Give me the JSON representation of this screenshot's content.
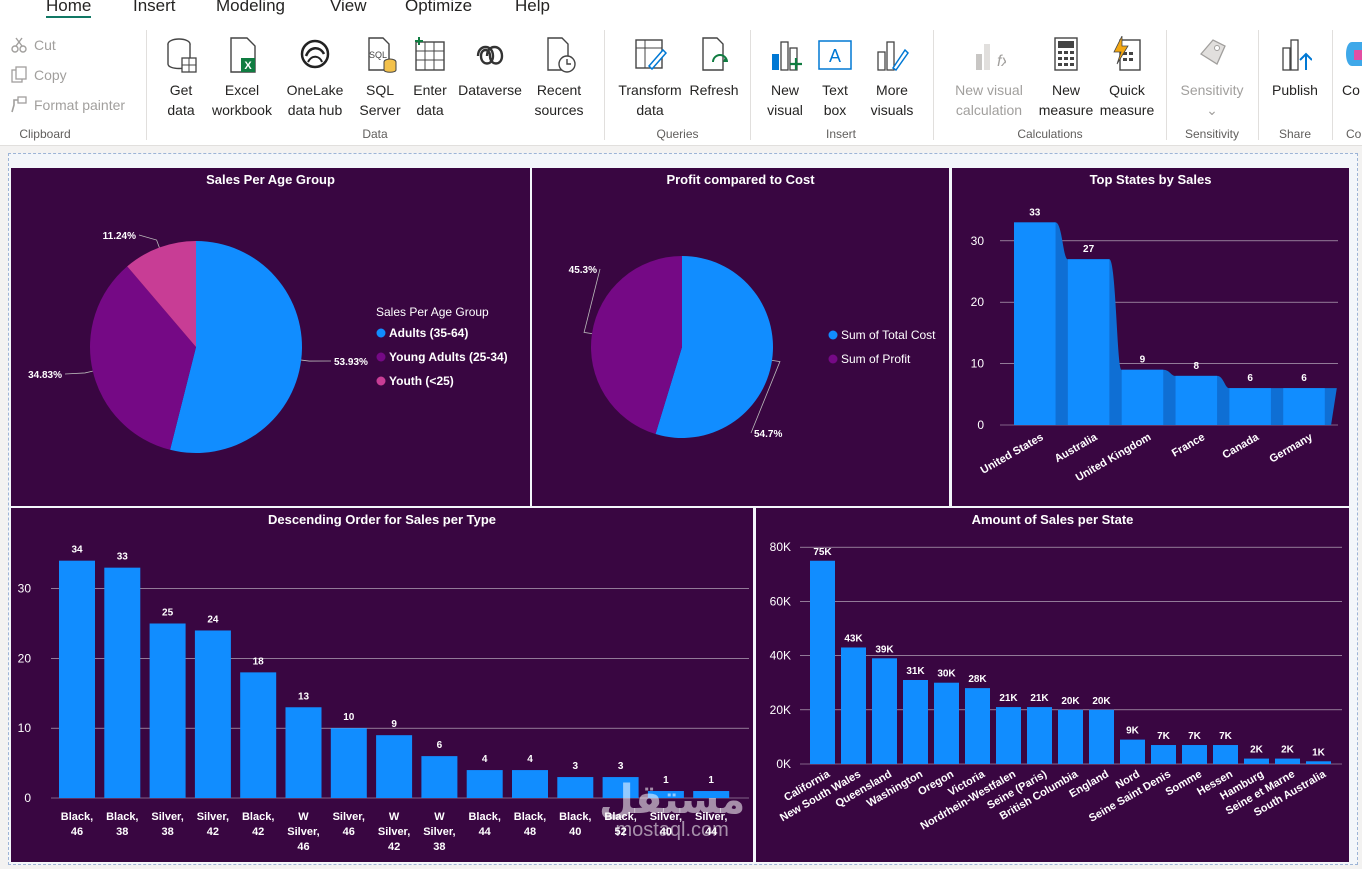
{
  "tabs": [
    "Home",
    "Insert",
    "Modeling",
    "View",
    "Optimize",
    "Help"
  ],
  "clipboard": {
    "cut": "Cut",
    "copy": "Copy",
    "format_painter": "Format painter",
    "label": "Clipboard"
  },
  "data_group": {
    "get_data": [
      "Get",
      "data"
    ],
    "excel": [
      "Excel",
      "workbook"
    ],
    "onelake": [
      "OneLake",
      "data hub"
    ],
    "sql": [
      "SQL",
      "Server"
    ],
    "enter": [
      "Enter",
      "data"
    ],
    "dataverse": [
      "Dataverse",
      ""
    ],
    "recent": [
      "Recent",
      "sources"
    ],
    "label": "Data"
  },
  "queries": {
    "transform": [
      "Transform",
      "data"
    ],
    "refresh": [
      "Refresh",
      ""
    ],
    "label": "Queries"
  },
  "insert": {
    "new_visual": [
      "New",
      "visual"
    ],
    "text_box": [
      "Text",
      "box"
    ],
    "more": [
      "More",
      "visuals"
    ],
    "label": "Insert"
  },
  "calculations": {
    "new_visual_calc": [
      "New visual",
      "calculation"
    ],
    "new_measure": [
      "New",
      "measure"
    ],
    "quick_measure": [
      "Quick",
      "measure"
    ],
    "label": "Calculations"
  },
  "sensitivity": {
    "btn": "Sensitivity",
    "label": "Sensitivity"
  },
  "share": {
    "publish": "Publish",
    "label": "Share"
  },
  "cut_off": {
    "btn": "Co",
    "label": "Co"
  },
  "colors": {
    "panel_bg": "#390641",
    "blue": "#118dff",
    "purple": "#750985",
    "pink": "#c83d95"
  },
  "watermark": {
    "text": "مستقل",
    "sub": "mostaql.com"
  },
  "chart_data": [
    {
      "type": "pie",
      "title": "Sales Per Age Group",
      "legend_title": "Sales Per Age Group",
      "labels": [
        "Adults (35-64)",
        "Young Adults (25-34)",
        "Youth (<25)"
      ],
      "values": [
        53.93,
        34.83,
        11.24
      ],
      "value_labels": [
        "53.93%",
        "34.83%",
        "11.24%"
      ],
      "colors": [
        "#118dff",
        "#750985",
        "#c83d95"
      ],
      "legend_position": "right"
    },
    {
      "type": "pie",
      "title": "Profit compared to Cost",
      "labels": [
        "Sum of Total Cost",
        "Sum of Profit"
      ],
      "values": [
        54.7,
        45.3
      ],
      "value_labels": [
        "54.7%",
        "45.3%"
      ],
      "colors": [
        "#118dff",
        "#750985"
      ],
      "legend_position": "right"
    },
    {
      "type": "area",
      "title": "Top States by Sales",
      "categories": [
        "United States",
        "Australia",
        "United Kingdom",
        "France",
        "Canada",
        "Germany"
      ],
      "values": [
        33,
        27,
        9,
        8,
        6,
        6
      ],
      "yticks": [
        0,
        10,
        20,
        30
      ],
      "ylim": [
        0,
        35
      ]
    },
    {
      "type": "bar",
      "title": "Descending Order for Sales per Type",
      "categories": [
        [
          "Black,",
          "46"
        ],
        [
          "Black,",
          "38"
        ],
        [
          "Silver,",
          "38"
        ],
        [
          "Silver,",
          "42"
        ],
        [
          "Black,",
          "42"
        ],
        [
          "W",
          "Silver,",
          "46"
        ],
        [
          "Silver,",
          "46"
        ],
        [
          "W",
          "Silver,",
          "42"
        ],
        [
          "W",
          "Silver,",
          "38"
        ],
        [
          "Black,",
          "44"
        ],
        [
          "Black,",
          "48"
        ],
        [
          "Black,",
          "40"
        ],
        [
          "Black,",
          "52"
        ],
        [
          "Silver,",
          "40"
        ],
        [
          "Silver,",
          "44"
        ]
      ],
      "values": [
        34,
        33,
        25,
        24,
        18,
        13,
        10,
        9,
        6,
        4,
        4,
        3,
        3,
        1,
        1
      ],
      "yticks": [
        0,
        10,
        20,
        30
      ],
      "ylim": [
        0,
        34
      ]
    },
    {
      "type": "bar",
      "title": "Amount of Sales per State",
      "categories": [
        "California",
        "New South Wales",
        "Queensland",
        "Washington",
        "Oregon",
        "Victoria",
        "Nordrhein-Westfalen",
        "Seine (Paris)",
        "British Columbia",
        "England",
        "Nord",
        "Seine Saint Denis",
        "Somme",
        "Hessen",
        "Hamburg",
        "Seine et Marne",
        "South Australia"
      ],
      "values": [
        75,
        43,
        39,
        31,
        30,
        28,
        21,
        21,
        20,
        20,
        9,
        7,
        7,
        7,
        2,
        2,
        1
      ],
      "value_labels": [
        "75K",
        "43K",
        "39K",
        "31K",
        "30K",
        "28K",
        "21K",
        "21K",
        "20K",
        "20K",
        "9K",
        "7K",
        "7K",
        "7K",
        "2K",
        "2K",
        "1K"
      ],
      "yticks": [
        "0K",
        "20K",
        "40K",
        "60K",
        "80K"
      ],
      "ylim": [
        0,
        80
      ]
    }
  ]
}
